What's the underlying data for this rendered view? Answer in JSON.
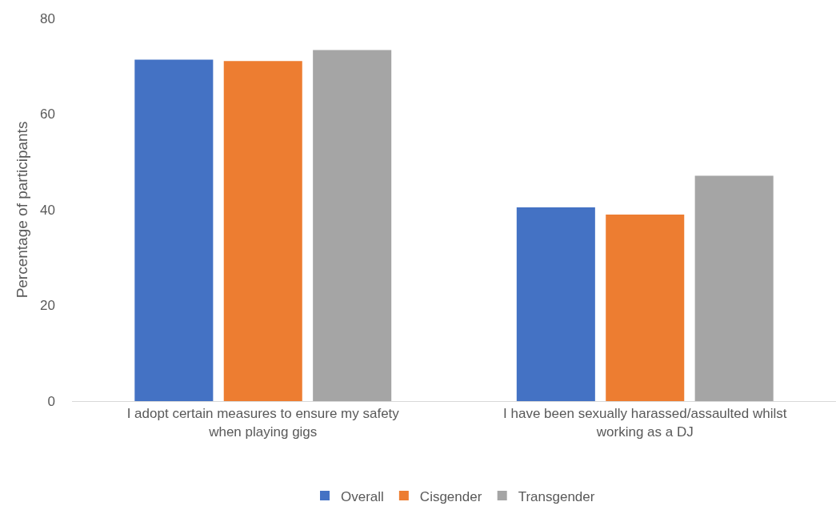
{
  "chart_data": {
    "type": "bar",
    "ylabel": "Percentage of participants",
    "categories": [
      "I adopt certain measures to ensure my safety when playing gigs",
      "I have been sexually harassed/assaulted whilst working as a DJ"
    ],
    "series": [
      {
        "name": "Overall",
        "color": "#4472c4",
        "values": [
          71.4,
          40.5
        ]
      },
      {
        "name": "Cisgender",
        "color": "#ed7d31",
        "values": [
          71.1,
          39.0
        ]
      },
      {
        "name": "Transgender",
        "color": "#a5a5a5",
        "values": [
          73.4,
          47.1
        ]
      }
    ],
    "ylim": [
      0,
      80
    ],
    "yticks": [
      0,
      20,
      40,
      60,
      80
    ],
    "grid": false,
    "legend": "bottom"
  }
}
